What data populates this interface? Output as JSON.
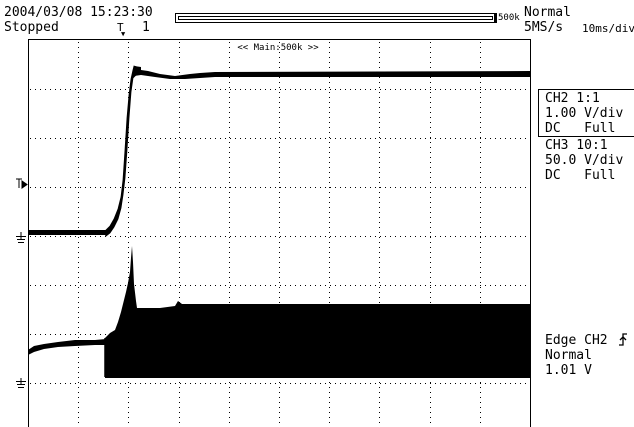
{
  "header": {
    "timestamp": "2004/03/08 15:23:30",
    "status": "Stopped",
    "trigger_marker": "T",
    "trigger_count": "1",
    "record_length": "500k",
    "mode": "Normal",
    "sample_rate": "5MS/s",
    "timebase": "10ms/div",
    "main_label": "<< Main:500k >>"
  },
  "channels": {
    "ch2": {
      "line1": "CH2 1:1",
      "line2": "1.00 V/div",
      "line3": "DC   Full"
    },
    "ch3": {
      "line1": "CH3 10:1",
      "line2": "50.0 V/div",
      "line3": "DC   Full"
    }
  },
  "trigger": {
    "line1": "Edge CH2",
    "line2": "Normal",
    "line3": "1.01 V",
    "level_marker": "T",
    "slope_icon": "rising-edge-icon"
  },
  "colors": {
    "trace": "#000000",
    "grid": "#000000",
    "background": "#ffffff"
  }
}
